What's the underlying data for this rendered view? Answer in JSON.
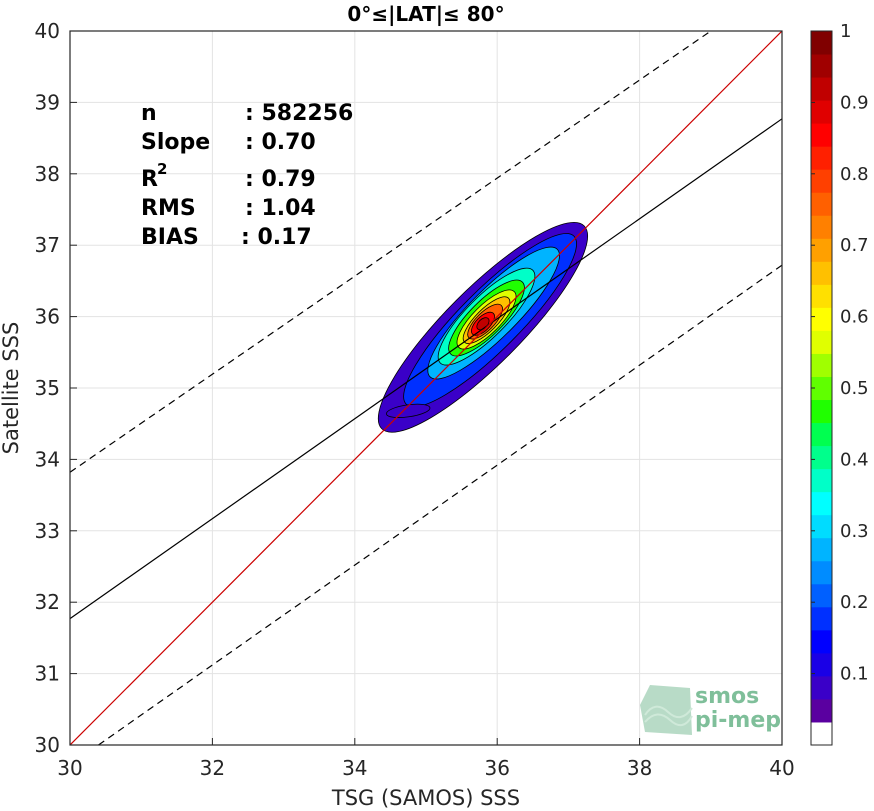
{
  "chart_data": {
    "type": "heatmap",
    "title": "0°≤|LAT|≤ 80°",
    "xlabel": "TSG (SAMOS) SSS",
    "ylabel": "Satellite SSS",
    "xlim": [
      30,
      40
    ],
    "ylim": [
      30,
      40
    ],
    "xticks": [
      "30",
      "32",
      "34",
      "36",
      "38",
      "40"
    ],
    "yticks": [
      "30",
      "31",
      "32",
      "33",
      "34",
      "35",
      "36",
      "37",
      "38",
      "39",
      "40"
    ],
    "grid": true,
    "stats": {
      "n_label": "n",
      "n_value": ": 582256",
      "slope_label": "Slope",
      "slope_value": ": 0.70",
      "r2_label": "R",
      "r2_sup": "2",
      "r2_value": ": 0.79",
      "rms_label": "RMS",
      "rms_value": ": 1.04",
      "bias_label": "BIAS",
      "bias_value": ": 0.17"
    },
    "lines": {
      "one_to_one": {
        "color": "#cc0000",
        "x": [
          30,
          40
        ],
        "y": [
          30,
          40
        ]
      },
      "regression": {
        "color": "#000000",
        "x": [
          30,
          40
        ],
        "y": [
          31.77,
          38.77
        ]
      },
      "upper_bound": {
        "color": "#000000",
        "style": "dashed",
        "x": [
          30,
          39.0
        ],
        "y": [
          33.82,
          40.0
        ]
      },
      "lower_bound": {
        "color": "#000000",
        "style": "dashed",
        "x": [
          30.4,
          40
        ],
        "y": [
          30,
          36.72
        ]
      }
    },
    "density_peak": {
      "x": 35.8,
      "y": 35.9
    },
    "colorbar": {
      "ticks": [
        "0.1",
        "0.2",
        "0.3",
        "0.4",
        "0.5",
        "0.6",
        "0.7",
        "0.8",
        "0.9",
        "1"
      ],
      "range": [
        0,
        1
      ],
      "colors": [
        "#ffffff",
        "#5a00a0",
        "#3a00c8",
        "#1a00e6",
        "#0000ff",
        "#0030ff",
        "#0060ff",
        "#008cff",
        "#00b4ff",
        "#00dcff",
        "#00ffff",
        "#00ffc8",
        "#00ff8c",
        "#00ff50",
        "#20ff00",
        "#60ff00",
        "#a0ff00",
        "#e0ff00",
        "#ffff00",
        "#ffe000",
        "#ffc000",
        "#ffa000",
        "#ff8000",
        "#ff6000",
        "#ff4000",
        "#ff2000",
        "#ff0000",
        "#e00000",
        "#c00000",
        "#a00000",
        "#800000"
      ]
    }
  },
  "logo": {
    "line1": "smos",
    "line2": "pi-mep"
  }
}
